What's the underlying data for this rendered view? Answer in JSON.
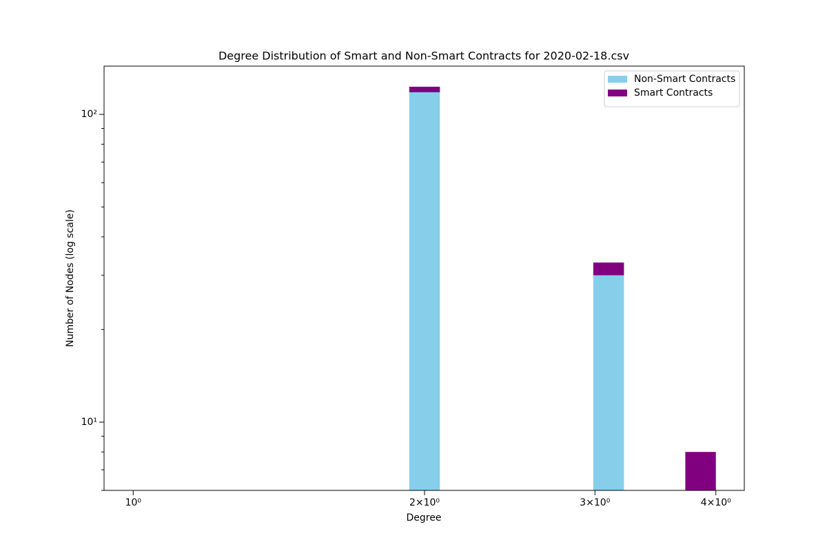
{
  "chart_data": {
    "type": "histogram",
    "title": "Degree Distribution of Smart and Non-Smart Contracts for 2020-02-18.csv",
    "x_label": "Degree",
    "y_label": "Number of Nodes (log scale)",
    "bins": [
      1,
      1.0757,
      1.1571,
      1.2447,
      1.3389,
      1.4403,
      1.5493,
      1.6666,
      1.7928,
      1.9285,
      2.0745,
      2.2316,
      2.4005,
      2.5823,
      2.7778,
      2.9881,
      3.2144,
      3.4577,
      3.7195,
      4
    ],
    "series": [
      {
        "name": "Non-Smart Contracts",
        "color": "#87ceeb",
        "values": [
          0,
          0,
          0,
          0,
          0,
          0,
          0,
          0,
          0,
          118,
          0,
          0,
          0,
          0,
          0,
          30,
          0,
          0,
          0
        ]
      },
      {
        "name": "Smart Contracts",
        "color": "#800080",
        "values": [
          0,
          0,
          0,
          0,
          0,
          0,
          0,
          0,
          0,
          5,
          0,
          0,
          0,
          0,
          0,
          3,
          0,
          0,
          8
        ]
      }
    ],
    "stacked": true,
    "xscale": "log",
    "yscale": "log",
    "xlim": [
      0.933,
      4.28
    ],
    "ylim": [
      6,
      143.5
    ],
    "xticks": [
      {
        "value": 1,
        "label": "10⁰"
      },
      {
        "value": 2,
        "label": "2×10⁰"
      },
      {
        "value": 3,
        "label": "3×10⁰"
      },
      {
        "value": 4,
        "label": "4×10⁰"
      }
    ],
    "yticks": [
      {
        "value": 10,
        "label": "10¹"
      },
      {
        "value": 100,
        "label": "10²"
      }
    ],
    "yminorticks": [
      6,
      7,
      8,
      9,
      20,
      30,
      40,
      50,
      60,
      70,
      80,
      90
    ],
    "legend": "upper right"
  }
}
